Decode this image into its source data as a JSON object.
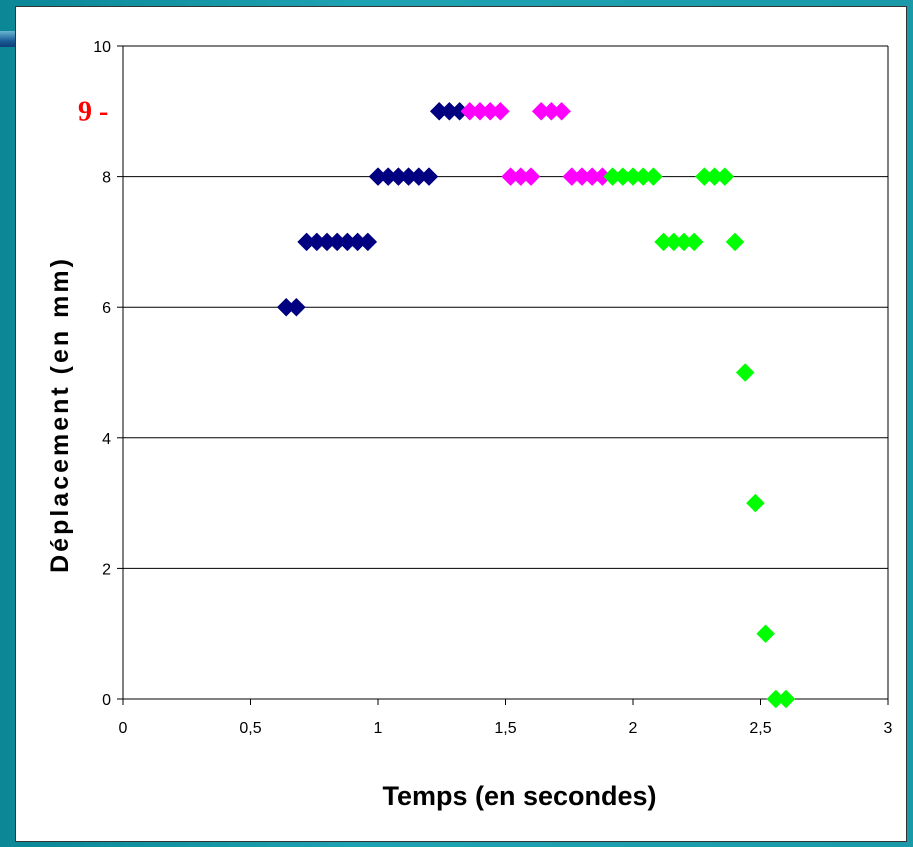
{
  "chart_data": {
    "type": "scatter",
    "xlabel": "Temps (en secondes)",
    "ylabel": "Déplacement (en mm)",
    "xlim": [
      0,
      3
    ],
    "ylim": [
      0,
      10
    ],
    "x_ticks": [
      "0",
      "0,5",
      "1",
      "1,5",
      "2",
      "2,5",
      "3"
    ],
    "x_tick_values": [
      0,
      0.5,
      1,
      1.5,
      2,
      2.5,
      3
    ],
    "y_ticks": [
      "0",
      "2",
      "4",
      "6",
      "8",
      "10"
    ],
    "y_tick_values": [
      0,
      2,
      4,
      6,
      8,
      10
    ],
    "grid": "horizontal",
    "annotation": {
      "text": "9 -",
      "y": 9
    },
    "series": [
      {
        "color": "#000080",
        "points": [
          [
            0.64,
            6
          ],
          [
            0.68,
            6
          ],
          [
            0.72,
            7
          ],
          [
            0.76,
            7
          ],
          [
            0.8,
            7
          ],
          [
            0.84,
            7
          ],
          [
            0.88,
            7
          ],
          [
            0.92,
            7
          ],
          [
            0.96,
            7
          ],
          [
            1.0,
            8
          ],
          [
            1.04,
            8
          ],
          [
            1.08,
            8
          ],
          [
            1.12,
            8
          ],
          [
            1.16,
            8
          ],
          [
            1.2,
            8
          ],
          [
            1.24,
            9
          ],
          [
            1.28,
            9
          ],
          [
            1.32,
            9
          ]
        ]
      },
      {
        "color": "#ff00ff",
        "points": [
          [
            1.36,
            9
          ],
          [
            1.4,
            9
          ],
          [
            1.44,
            9
          ],
          [
            1.48,
            9
          ],
          [
            1.52,
            8
          ],
          [
            1.56,
            8
          ],
          [
            1.6,
            8
          ],
          [
            1.64,
            9
          ],
          [
            1.68,
            9
          ],
          [
            1.72,
            9
          ],
          [
            1.76,
            8
          ],
          [
            1.8,
            8
          ],
          [
            1.84,
            8
          ],
          [
            1.88,
            8
          ]
        ]
      },
      {
        "color": "#00ff00",
        "points": [
          [
            1.92,
            8
          ],
          [
            1.96,
            8
          ],
          [
            2.0,
            8
          ],
          [
            2.04,
            8
          ],
          [
            2.08,
            8
          ],
          [
            2.12,
            7
          ],
          [
            2.16,
            7
          ],
          [
            2.2,
            7
          ],
          [
            2.24,
            7
          ],
          [
            2.28,
            8
          ],
          [
            2.32,
            8
          ],
          [
            2.36,
            8
          ],
          [
            2.4,
            7
          ],
          [
            2.44,
            5
          ],
          [
            2.48,
            3
          ],
          [
            2.52,
            1
          ],
          [
            2.56,
            0
          ],
          [
            2.6,
            0
          ]
        ]
      }
    ]
  }
}
